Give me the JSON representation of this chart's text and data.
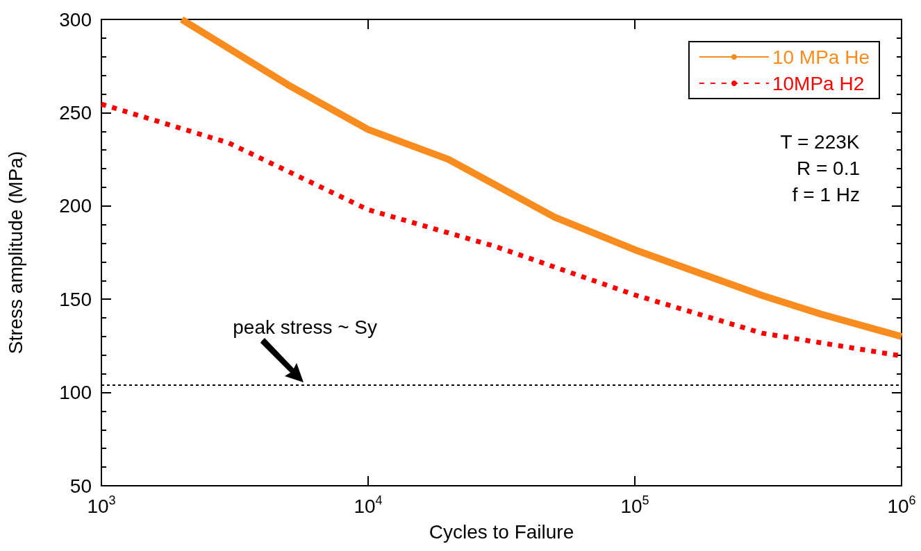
{
  "chart_data": {
    "type": "line",
    "xlabel": "Cycles to Failure",
    "ylabel": "Stress amplitude (MPa)",
    "log": "x",
    "xlim": [
      1000,
      1000000
    ],
    "xticks": [
      {
        "value": 1000,
        "label": "10$^{3}$"
      },
      {
        "value": 10000,
        "label": "10$^{4}$"
      },
      {
        "value": 100000,
        "label": "10$^{5}$"
      },
      {
        "value": 1000000,
        "label": "10$^{6}$"
      }
    ],
    "ylim": [
      50,
      300
    ],
    "yticks": [
      50,
      100,
      150,
      200,
      250,
      300
    ],
    "series": [
      {
        "name": "10 MPa He",
        "color": "#f98c1e",
        "line_style": "solid",
        "x": [
          2000,
          5000,
          10000,
          20000,
          50000,
          100000,
          300000,
          500000,
          1000000
        ],
        "values": [
          300,
          265,
          241,
          225,
          194,
          176.5,
          152,
          142,
          130
        ]
      },
      {
        "name": "10MPa H2",
        "color": "#ff0000",
        "line_style": "dotted",
        "x": [
          1000,
          3000,
          10000,
          30000,
          100000,
          300000,
          1000000
        ],
        "values": [
          254.6,
          233.8,
          198,
          178.3,
          152.3,
          131.8,
          119.6
        ]
      }
    ],
    "ref_lines": [
      {
        "axis": "y",
        "value": 104,
        "label": null,
        "color": "#000000",
        "line_style": "dashed"
      }
    ],
    "annotations": [
      {
        "text": "peak stress ~ Sy",
        "x": 5800,
        "y": 104
      },
      "T = 223K",
      "R = 0.1",
      "f = 1 Hz"
    ],
    "legend": "top right",
    "grid": false,
    "marker": "none"
  }
}
